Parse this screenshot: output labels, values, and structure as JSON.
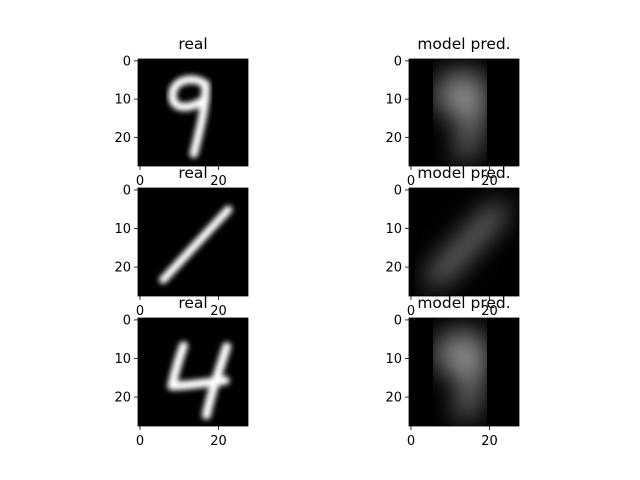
{
  "chart_data": [
    {
      "type": "image",
      "title": "real",
      "depicts": "handwritten-digit-9",
      "rendering": "sharp",
      "image_size": [
        28,
        28
      ],
      "colormap": "gray",
      "xticks": [
        {
          "value": 0,
          "label": "0"
        },
        {
          "value": 20,
          "label": "20"
        }
      ],
      "yticks": [
        {
          "value": 0,
          "label": "0"
        },
        {
          "value": 10,
          "label": "10"
        },
        {
          "value": 20,
          "label": "20"
        }
      ]
    },
    {
      "type": "image",
      "title": "model pred.",
      "depicts": "handwritten-digit-9",
      "rendering": "blurry",
      "image_size": [
        28,
        28
      ],
      "colormap": "gray",
      "xticks": [
        {
          "value": 0,
          "label": "0"
        },
        {
          "value": 20,
          "label": "20"
        }
      ],
      "yticks": [
        {
          "value": 0,
          "label": "0"
        },
        {
          "value": 10,
          "label": "10"
        },
        {
          "value": 20,
          "label": "20"
        }
      ]
    },
    {
      "type": "image",
      "title": "real",
      "depicts": "handwritten-digit-1",
      "rendering": "sharp",
      "image_size": [
        28,
        28
      ],
      "colormap": "gray",
      "xticks": [
        {
          "value": 0,
          "label": "0"
        },
        {
          "value": 20,
          "label": "20"
        }
      ],
      "yticks": [
        {
          "value": 0,
          "label": "0"
        },
        {
          "value": 10,
          "label": "10"
        },
        {
          "value": 20,
          "label": "20"
        }
      ]
    },
    {
      "type": "image",
      "title": "model pred.",
      "depicts": "handwritten-digit-1",
      "rendering": "blurry",
      "image_size": [
        28,
        28
      ],
      "colormap": "gray",
      "xticks": [
        {
          "value": 0,
          "label": "0"
        },
        {
          "value": 20,
          "label": "20"
        }
      ],
      "yticks": [
        {
          "value": 0,
          "label": "0"
        },
        {
          "value": 10,
          "label": "10"
        },
        {
          "value": 20,
          "label": "20"
        }
      ]
    },
    {
      "type": "image",
      "title": "real",
      "depicts": "handwritten-digit-4",
      "rendering": "sharp",
      "image_size": [
        28,
        28
      ],
      "colormap": "gray",
      "xticks": [
        {
          "value": 0,
          "label": "0"
        },
        {
          "value": 20,
          "label": "20"
        }
      ],
      "yticks": [
        {
          "value": 0,
          "label": "0"
        },
        {
          "value": 10,
          "label": "10"
        },
        {
          "value": 20,
          "label": "20"
        }
      ]
    },
    {
      "type": "image",
      "title": "model pred.",
      "depicts": "handwritten-digit-9",
      "rendering": "blurry",
      "image_size": [
        28,
        28
      ],
      "colormap": "gray",
      "xticks": [
        {
          "value": 0,
          "label": "0"
        },
        {
          "value": 20,
          "label": "20"
        }
      ],
      "yticks": [
        {
          "value": 0,
          "label": "0"
        },
        {
          "value": 10,
          "label": "10"
        },
        {
          "value": 20,
          "label": "20"
        }
      ]
    }
  ],
  "colors": {
    "figure_background": "#ffffff",
    "image_background": "#000000",
    "stroke": "#ffffff",
    "axis": "#000000"
  }
}
